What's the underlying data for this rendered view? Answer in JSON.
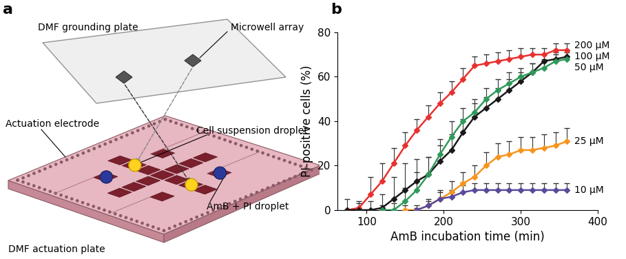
{
  "diagram": {
    "panel_label": "a",
    "grounding_plate": {
      "label": "DMF grounding plate",
      "microwell_label": "Microwell array"
    },
    "actuation_plate": {
      "label": "DMF actuation plate",
      "electrode_label": "Actuation electrode",
      "cell_droplet_label": "Cell suspension droplet",
      "drug_droplet_label": "AmB + PI droplet"
    }
  },
  "chart_data": {
    "panel_label": "b",
    "type": "line",
    "x_label": "AmB incubation time (min)",
    "y_label": "PI-positive cells (%)",
    "x": [
      75,
      90,
      105,
      120,
      135,
      150,
      165,
      180,
      195,
      210,
      225,
      240,
      255,
      270,
      285,
      300,
      315,
      330,
      345,
      360
    ],
    "xlim": [
      62,
      400
    ],
    "xticks": [
      100,
      200,
      300,
      400
    ],
    "ylim": [
      0,
      80
    ],
    "yticks": [
      0,
      20,
      40,
      60,
      80
    ],
    "marker": "diamond",
    "series": [
      {
        "name": "200 µM",
        "color": "#e8312f",
        "values": [
          0,
          1,
          7,
          13,
          21,
          29,
          36,
          42,
          48,
          53,
          59,
          65,
          66,
          67,
          68,
          69,
          70,
          70,
          72,
          72
        ],
        "errors": [
          0,
          2,
          8,
          8,
          7,
          6,
          5,
          5,
          5,
          5,
          5,
          4,
          4,
          4,
          4,
          4,
          3,
          3,
          3,
          3
        ]
      },
      {
        "name": "100 µM",
        "color": "#1a1a1a",
        "values": [
          0,
          0,
          0,
          1,
          5,
          9,
          13,
          16,
          22,
          27,
          35,
          42,
          46,
          50,
          54,
          58,
          62,
          67,
          68,
          69
        ],
        "errors": [
          5,
          4,
          4,
          6,
          10,
          12,
          10,
          8,
          7,
          7,
          6,
          6,
          5,
          5,
          5,
          4,
          4,
          3,
          3,
          3
        ]
      },
      {
        "name": "50 µM",
        "color": "#2e9a5a",
        "values": [
          null,
          null,
          null,
          0,
          0,
          4,
          9,
          16,
          25,
          33,
          40,
          44,
          50,
          54,
          57,
          60,
          62,
          64,
          67,
          68
        ],
        "errors": [
          null,
          null,
          null,
          2,
          3,
          6,
          8,
          8,
          7,
          7,
          6,
          6,
          5,
          5,
          5,
          4,
          4,
          4,
          3,
          3
        ]
      },
      {
        "name": "25 µM",
        "color": "#f7941d",
        "values": [
          null,
          null,
          null,
          null,
          null,
          0,
          0,
          2,
          5,
          8,
          12,
          15,
          20,
          24,
          25,
          27,
          27,
          28,
          29,
          31
        ],
        "errors": [
          null,
          null,
          null,
          null,
          null,
          2,
          2,
          3,
          4,
          5,
          5,
          5,
          6,
          6,
          6,
          6,
          6,
          6,
          6,
          6
        ]
      },
      {
        "name": "10 µM",
        "color": "#5a4a9a",
        "values": [
          null,
          null,
          null,
          null,
          null,
          null,
          0,
          2,
          5,
          6,
          8,
          9,
          9,
          9,
          9,
          9,
          9,
          9,
          9,
          9
        ],
        "errors": [
          null,
          null,
          null,
          null,
          null,
          null,
          1,
          2,
          3,
          3,
          3,
          3,
          3,
          3,
          3,
          3,
          3,
          3,
          3,
          3
        ]
      }
    ]
  }
}
